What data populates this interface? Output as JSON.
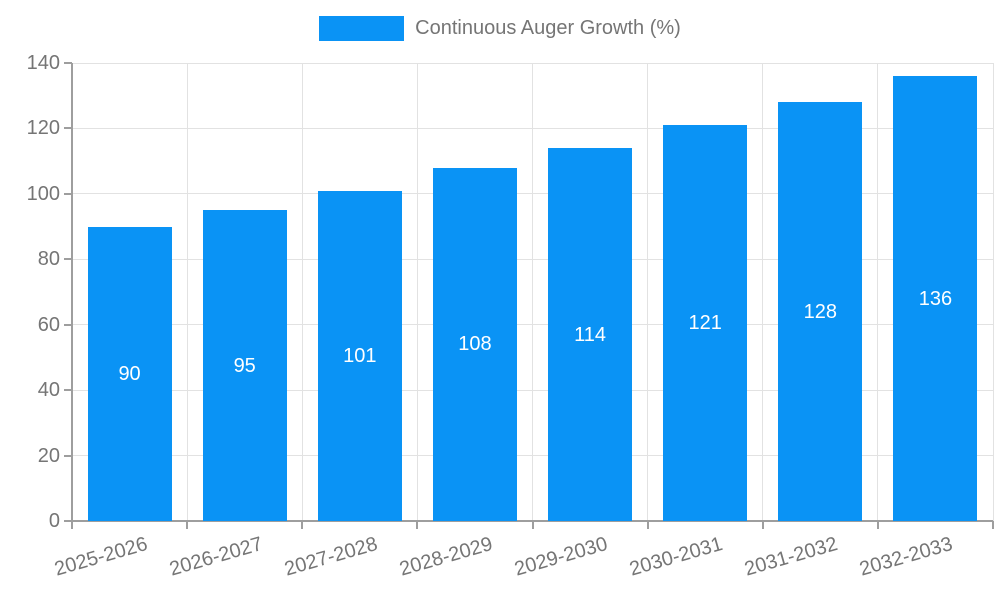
{
  "legend": {
    "label": "Continuous Auger Growth (%)"
  },
  "colors": {
    "bar": "#0a93f5",
    "axis": "#9e9e9e",
    "grid": "#e2e2e2",
    "tick_text": "#757575",
    "bar_label_text": "#ffffff",
    "background": "#ffffff"
  },
  "chart_data": {
    "type": "bar",
    "title": "Continuous Auger Growth (%)",
    "categories": [
      "2025-2026",
      "2026-2027",
      "2027-2028",
      "2028-2029",
      "2029-2030",
      "2030-2031",
      "2031-2032",
      "2032-2033"
    ],
    "values": [
      90,
      95,
      101,
      108,
      114,
      121,
      128,
      136
    ],
    "xlabel": "",
    "ylabel": "",
    "ylim": [
      0,
      140
    ],
    "yticks": [
      0,
      20,
      40,
      60,
      80,
      100,
      120,
      140
    ],
    "grid": true,
    "legend_position": "top",
    "legend_entries": [
      "Continuous Auger Growth (%)"
    ],
    "bar_labels_shown": true,
    "bar_label_position": "center"
  }
}
